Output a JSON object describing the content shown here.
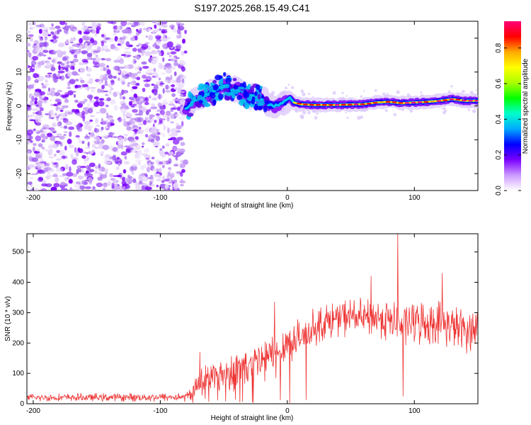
{
  "title": "S197.2025.268.15.49.C41",
  "colors": {
    "snr_line": "#ee3333",
    "spectrogram_noise": "#7b2be0",
    "axis": "#000000",
    "background": "#ffffff"
  },
  "chart_data": [
    {
      "type": "heatmap",
      "name": "spectrogram",
      "title": "S197.2025.268.15.49.C41",
      "xlabel": "Height of straight line (km)",
      "ylabel": "Frequency (Hz)",
      "xlim": [
        -205,
        150
      ],
      "ylim": [
        -25,
        25
      ],
      "x_ticks": [
        -200,
        -100,
        0,
        100
      ],
      "x_tick_labels": [
        "-200",
        "-100",
        "0",
        "100"
      ],
      "y_ticks": [
        -20,
        -10,
        0,
        10,
        20
      ],
      "y_tick_labels": [
        "-20",
        "-10",
        "0",
        "10",
        "20"
      ],
      "noise_region_x": [
        -205,
        -80
      ],
      "ridge": {
        "x": [
          -80,
          -75,
          -70,
          -65,
          -60,
          -55,
          -50,
          -45,
          -40,
          -35,
          -30,
          -25,
          -20,
          -15,
          -10,
          -5,
          0,
          2,
          5,
          10,
          20,
          40,
          60,
          70,
          80,
          90,
          100,
          110,
          120,
          130,
          140,
          150
        ],
        "frequency": [
          -1,
          1,
          2,
          3,
          4,
          5,
          6,
          5,
          5,
          4,
          3,
          3,
          2,
          0.5,
          0,
          0.5,
          2,
          2.5,
          1,
          0.5,
          0.3,
          0.3,
          0.5,
          1,
          1.2,
          0.8,
          1,
          1.2,
          1.5,
          2,
          1.5,
          1.5
        ]
      },
      "colorbar": {
        "label": "Normalized spectral amplitude",
        "range": [
          0,
          0.95
        ],
        "ticks": [
          0.0,
          0.2,
          0.4,
          0.6,
          0.8
        ],
        "tick_labels": [
          "0.0",
          "0.2",
          "0.4",
          "0.6",
          "0.8"
        ],
        "colormap": [
          "#ffffff",
          "#cc99ff",
          "#7a00ff",
          "#0000ff",
          "#00aaff",
          "#00ffcc",
          "#00ff00",
          "#aaff00",
          "#ffff00",
          "#ffaa00",
          "#ff0000",
          "#ff0077"
        ]
      }
    },
    {
      "type": "line",
      "name": "snr",
      "xlabel": "Height of straight line (km)",
      "ylabel": "SNR (10 * v/v)",
      "xlim": [
        -205,
        150
      ],
      "ylim": [
        0,
        560
      ],
      "x_ticks": [
        -200,
        -100,
        0,
        100
      ],
      "x_tick_labels": [
        "-200",
        "-100",
        "0",
        "100"
      ],
      "y_ticks": [
        0,
        100,
        200,
        300,
        400,
        500
      ],
      "y_tick_labels": [
        "0",
        "100",
        "200",
        "300",
        "400",
        "500"
      ],
      "series": [
        {
          "name": "SNR",
          "envelope_x": [
            -205,
            -80,
            -75,
            -70,
            -60,
            -50,
            -40,
            -30,
            -20,
            -10,
            0,
            10,
            20,
            30,
            40,
            50,
            60,
            70,
            80,
            90,
            100,
            110,
            120,
            130,
            140,
            150
          ],
          "envelope_mean": [
            20,
            22,
            35,
            70,
            90,
            100,
            115,
            120,
            140,
            160,
            205,
            215,
            250,
            270,
            280,
            290,
            280,
            285,
            275,
            260,
            270,
            265,
            270,
            255,
            240,
            250
          ],
          "envelope_spread": [
            12,
            14,
            25,
            50,
            55,
            60,
            70,
            75,
            80,
            80,
            60,
            60,
            60,
            60,
            60,
            60,
            60,
            65,
            70,
            70,
            70,
            70,
            70,
            70,
            70,
            70
          ],
          "peaks": [
            {
              "x": 87,
              "y": 560
            },
            {
              "x": 91,
              "y": 25
            },
            {
              "x": 122,
              "y": 430
            },
            {
              "x": 66,
              "y": 420
            },
            {
              "x": -69,
              "y": 170
            },
            {
              "x": -10,
              "y": 335
            }
          ]
        }
      ]
    }
  ]
}
